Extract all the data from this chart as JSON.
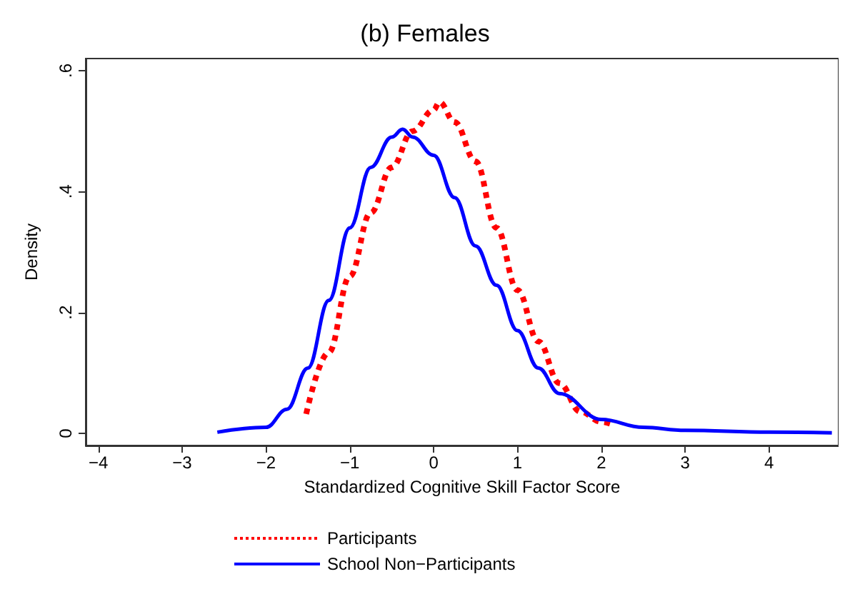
{
  "chart_data": {
    "type": "line",
    "title": "(b) Females",
    "xlabel": "Standardized Cognitive Skill Factor Score",
    "ylabel": "Density",
    "xlim": [
      -4.15,
      4.83
    ],
    "xticks": [
      -4,
      -3,
      -2,
      -1,
      0,
      1,
      2,
      3,
      4
    ],
    "ylim": [
      -0.02,
      0.62
    ],
    "yticks": [
      0,
      {
        "value": 0.2,
        "label": ".2"
      },
      {
        "value": 0.4,
        "label": ".4"
      },
      {
        "value": 0.6,
        "label": ".6"
      }
    ],
    "grid": false,
    "legend": "bottom",
    "marker": "none",
    "series": [
      {
        "name": "Participants",
        "color": "#ff0000",
        "line_style": "dotted",
        "x": [
          -1.52,
          -1.25,
          -1,
          -0.75,
          -0.5,
          -0.25,
          0,
          0.07,
          0.25,
          0.5,
          0.75,
          1,
          1.25,
          1.5,
          1.75,
          2,
          2.13
        ],
        "values": [
          0.032,
          0.134,
          0.26,
          0.365,
          0.44,
          0.5,
          0.535,
          0.548,
          0.515,
          0.45,
          0.34,
          0.237,
          0.152,
          0.083,
          0.036,
          0.019,
          0.015
        ]
      },
      {
        "name": "School Non−Participants",
        "color": "#0000ff",
        "line_style": "solid",
        "x": [
          -2.58,
          -2,
          -1.75,
          -1.5,
          -1.25,
          -1,
          -0.75,
          -0.5,
          -0.37,
          -0.25,
          0,
          0.25,
          0.5,
          0.75,
          1,
          1.25,
          1.5,
          2,
          2.5,
          3,
          4,
          4.75
        ],
        "values": [
          0.002,
          0.01,
          0.04,
          0.108,
          0.22,
          0.34,
          0.44,
          0.49,
          0.503,
          0.49,
          0.46,
          0.39,
          0.31,
          0.245,
          0.17,
          0.108,
          0.066,
          0.023,
          0.01,
          0.005,
          0.002,
          0.001
        ]
      }
    ]
  }
}
